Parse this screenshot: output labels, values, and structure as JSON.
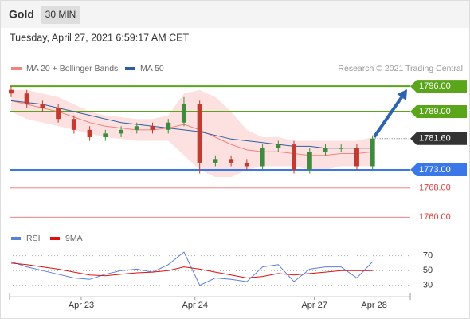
{
  "chart_data": [
    {
      "type": "candlestick",
      "title": "Gold",
      "timeframe": "30 MIN",
      "subtitle": "Tuesday, April 27, 2021 6:59:17 AM CET",
      "source": "Research © 2021 Trading Central",
      "xlim": [
        -0.1,
        25.4
      ],
      "ylim": [
        1757,
        1798
      ],
      "open": [
        1795,
        1794,
        1791,
        1790,
        1787,
        1784,
        1782,
        1783,
        1784,
        1785,
        1784,
        1786,
        1791,
        1775,
        1776,
        1775,
        1774,
        1779,
        1780,
        1773,
        1778,
        1779,
        1779,
        1774
      ],
      "high": [
        1796,
        1795,
        1792,
        1791,
        1788,
        1785,
        1784,
        1785,
        1786,
        1786,
        1787,
        1793,
        1792,
        1777,
        1777,
        1776,
        1780,
        1781,
        1781,
        1779,
        1780,
        1780,
        1780,
        1782.5
      ],
      "low": [
        1793,
        1790,
        1789,
        1786,
        1783,
        1781,
        1781,
        1782,
        1783,
        1783,
        1783,
        1785,
        1772,
        1774,
        1774,
        1773,
        1773,
        1778,
        1772,
        1772,
        1777,
        1778,
        1773,
        1773
      ],
      "close": [
        1794,
        1791,
        1790,
        1787,
        1784,
        1782,
        1783,
        1784,
        1785,
        1784,
        1786,
        1791,
        1775,
        1776,
        1775,
        1774,
        1779,
        1780,
        1773,
        1778,
        1779,
        1779,
        1774,
        1781.6
      ],
      "up_color": "#3d8b3d",
      "down_color": "#c23b30",
      "series": [
        {
          "name": "MA 20 + Bollinger Bands",
          "color": "#f4837d",
          "values": [
            1792,
            1791,
            1790,
            1789,
            1787.5,
            1786,
            1785,
            1784.5,
            1784,
            1784,
            1784.5,
            1785.5,
            1784,
            1782,
            1780,
            1778.5,
            1778,
            1778,
            1777.5,
            1777,
            1777,
            1777.5,
            1777.5,
            1778
          ],
          "upper": [
            1795,
            1795,
            1794,
            1793,
            1791,
            1789,
            1788,
            1787.5,
            1787,
            1787,
            1788,
            1794,
            1795,
            1793,
            1789,
            1784,
            1782,
            1782,
            1781,
            1781,
            1781,
            1781,
            1781,
            1782
          ],
          "lower": [
            1789,
            1787,
            1786,
            1785,
            1784,
            1783,
            1782,
            1781.5,
            1781,
            1781,
            1781,
            1777,
            1773,
            1771,
            1771,
            1773,
            1774,
            1774,
            1774,
            1773,
            1773,
            1774,
            1774,
            1774
          ],
          "band_color": "#fde1e1"
        },
        {
          "name": "MA 50",
          "color": "#2f5f9e",
          "values": [
            1792,
            1791.5,
            1791,
            1790,
            1789,
            1788,
            1787,
            1786,
            1785.5,
            1785,
            1784.5,
            1784,
            1783.5,
            1782.5,
            1781.5,
            1781,
            1780.5,
            1780,
            1779.5,
            1779.5,
            1779,
            1779,
            1779,
            1779
          ]
        }
      ],
      "levels": [
        {
          "value": 1796,
          "label": "1796.00",
          "color": "#5aa51a",
          "style": "box"
        },
        {
          "value": 1789,
          "label": "1789.00",
          "color": "#5aa51a",
          "style": "box"
        },
        {
          "value": 1781.6,
          "label": "1781.60",
          "color": "#333333",
          "style": "current"
        },
        {
          "value": 1773,
          "label": "1773.00",
          "color": "#3b78e7",
          "style": "box"
        },
        {
          "value": 1768,
          "label": "1768.00",
          "color": "#e23b3b",
          "style": "text"
        },
        {
          "value": 1760,
          "label": "1760.00",
          "color": "#e23b3b",
          "style": "text"
        }
      ],
      "target_color": "#2e63b0"
    },
    {
      "type": "line",
      "xlim": [
        -0.1,
        25.4
      ],
      "ylim": [
        20,
        88
      ],
      "yticks": [
        30,
        50,
        70
      ],
      "grid": true,
      "xticks": [
        {
          "value": 4.46,
          "label": "Apr 23"
        },
        {
          "value": 11.7,
          "label": "Apr 24"
        },
        {
          "value": 19.3,
          "label": "Apr 27"
        },
        {
          "value": 23.1,
          "label": "Apr 28"
        }
      ],
      "series": [
        {
          "name": "RSI",
          "color": "#5b7fdc",
          "values": [
            62,
            55,
            50,
            45,
            40,
            38,
            45,
            50,
            52,
            48,
            58,
            75,
            30,
            40,
            38,
            35,
            55,
            58,
            35,
            52,
            55,
            55,
            40,
            62
          ]
        },
        {
          "name": "9MA",
          "color": "#e01010",
          "values": [
            60,
            58,
            55,
            52,
            48,
            44,
            43,
            45,
            47,
            48,
            50,
            55,
            52,
            48,
            44,
            40,
            42,
            46,
            44,
            46,
            48,
            50,
            50,
            50
          ]
        }
      ]
    }
  ]
}
